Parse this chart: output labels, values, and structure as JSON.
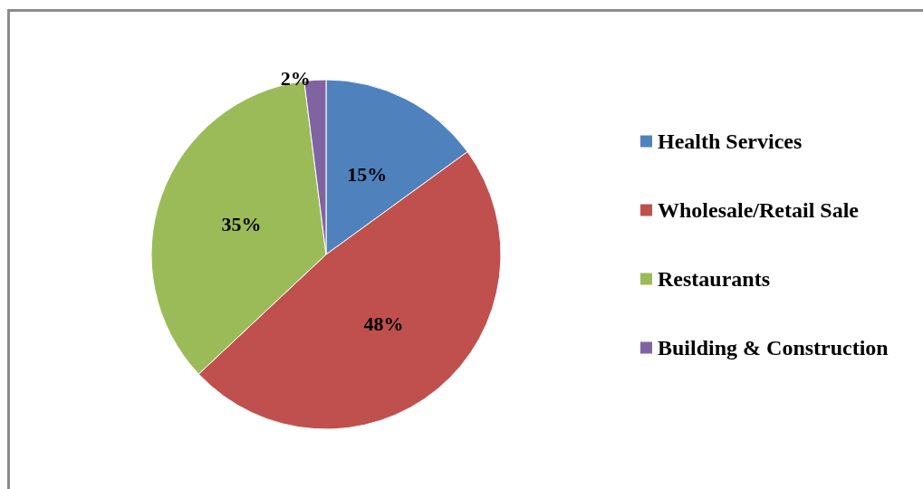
{
  "chart_data": {
    "type": "pie",
    "categories": [
      "Health Services",
      "Wholesale/Retail Sale",
      "Restaurants",
      "Building & Construction"
    ],
    "values": [
      15,
      48,
      35,
      2
    ],
    "colors": [
      "#4f81bd",
      "#c0504d",
      "#9bbb59",
      "#8064a2"
    ],
    "value_labels": [
      "15%",
      "48%",
      "35%",
      "2%"
    ],
    "legend": "right"
  }
}
